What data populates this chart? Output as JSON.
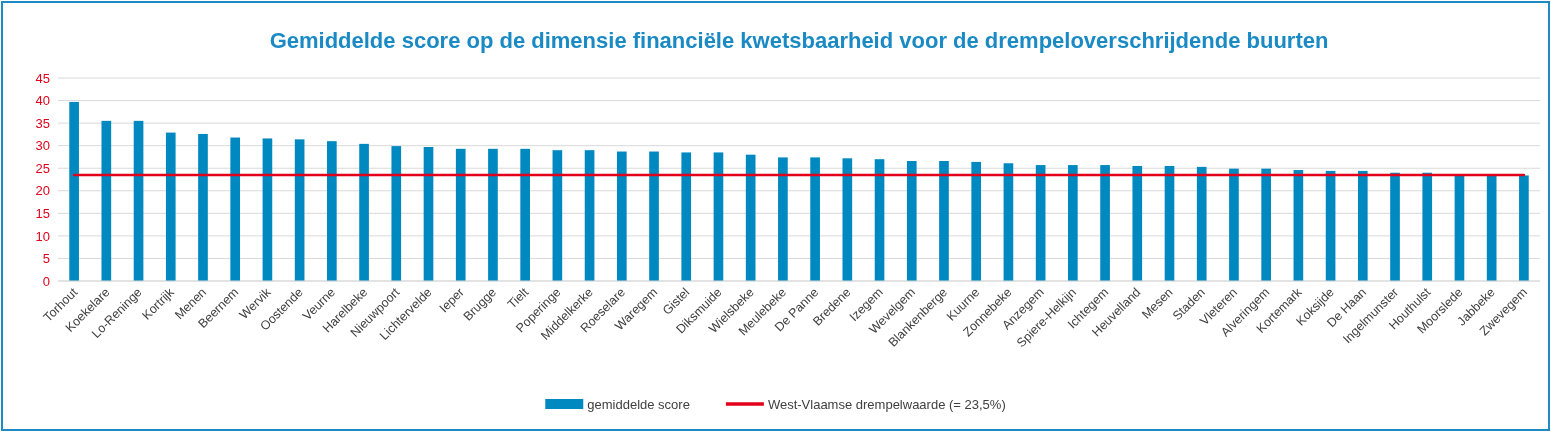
{
  "chart_data": {
    "type": "bar",
    "title": "Gemiddelde score op de dimensie financiële kwetsbaarheid voor de drempeloverschrijdende buurten",
    "categories": [
      "Torhout",
      "Koekelare",
      "Lo-Reninge",
      "Kortrijk",
      "Menen",
      "Beernem",
      "Wervik",
      "Oostende",
      "Veurne",
      "Harelbeke",
      "Nieuwpoort",
      "Lichtervelde",
      "Ieper",
      "Brugge",
      "Tielt",
      "Poperinge",
      "Middelkerke",
      "Roeselare",
      "Waregem",
      "Gistel",
      "Diksmuide",
      "Wielsbeke",
      "Meulebeke",
      "De Panne",
      "Bredene",
      "Izegem",
      "Wevelgem",
      "Blankenberge",
      "Kuurne",
      "Zonnebeke",
      "Anzegem",
      "Spiere-Helkijn",
      "Ichtegem",
      "Heuvelland",
      "Mesen",
      "Staden",
      "Vleteren",
      "Alveringem",
      "Kortemark",
      "Koksijde",
      "De Haan",
      "Ingelmunster",
      "Houthulst",
      "Moorslede",
      "Jabbeke",
      "Zwevegem"
    ],
    "series": [
      {
        "name": "gemiddelde score",
        "color": "#0089c0",
        "values": [
          39.7,
          35.5,
          35.5,
          32.9,
          32.6,
          31.8,
          31.6,
          31.4,
          31.0,
          30.4,
          29.9,
          29.7,
          29.3,
          29.3,
          29.3,
          29.0,
          29.0,
          28.7,
          28.7,
          28.5,
          28.5,
          28.0,
          27.4,
          27.4,
          27.2,
          27.0,
          26.6,
          26.6,
          26.4,
          26.1,
          25.7,
          25.7,
          25.7,
          25.5,
          25.5,
          25.3,
          24.9,
          24.9,
          24.6,
          24.4,
          24.4,
          24.0,
          24.0,
          23.4,
          23.4,
          23.4
        ]
      }
    ],
    "ref_lines": [
      {
        "axis": "y",
        "value": 23.5,
        "label": "West-Vlaamse drempelwaarde (= 23,5%)",
        "color": "#e2001a"
      }
    ],
    "ylim": [
      0,
      45
    ],
    "yticks": [
      0,
      5,
      10,
      15,
      20,
      25,
      30,
      35,
      40,
      45
    ],
    "grid": "y",
    "legend": "bottom"
  }
}
